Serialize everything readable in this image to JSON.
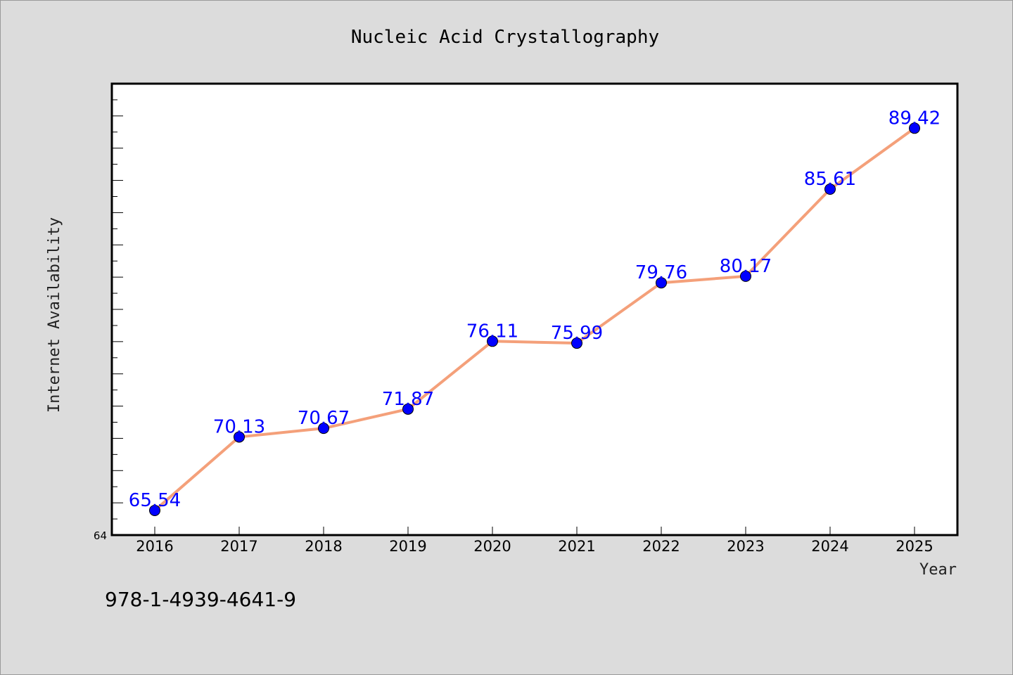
{
  "chart_data": {
    "type": "line",
    "title": "Nucleic Acid Crystallography",
    "xlabel": "Year",
    "ylabel": "Internet Availability",
    "categories": [
      "2016",
      "2017",
      "2018",
      "2019",
      "2020",
      "2021",
      "2022",
      "2023",
      "2024",
      "2025"
    ],
    "series": [
      {
        "values": [
          65.54,
          70.13,
          70.67,
          71.87,
          76.11,
          75.99,
          79.76,
          80.17,
          85.61,
          89.42
        ],
        "labels": [
          "65.54",
          "70.13",
          "70.67",
          "71.87",
          "76.11",
          "75.99",
          "79.76",
          "80.17",
          "85.61",
          "89.42"
        ],
        "line_color": "#f4a07a",
        "marker_color": "#0000ff"
      }
    ],
    "ylim": [
      64,
      92.2
    ],
    "y_tick_label": "64",
    "grid": false,
    "legend": "none"
  },
  "annotation": "978-1-4939-4641-9",
  "colors": {
    "background": "#dcdcdc",
    "plot_background": "#ffffff",
    "label_color": "#0000ff"
  }
}
